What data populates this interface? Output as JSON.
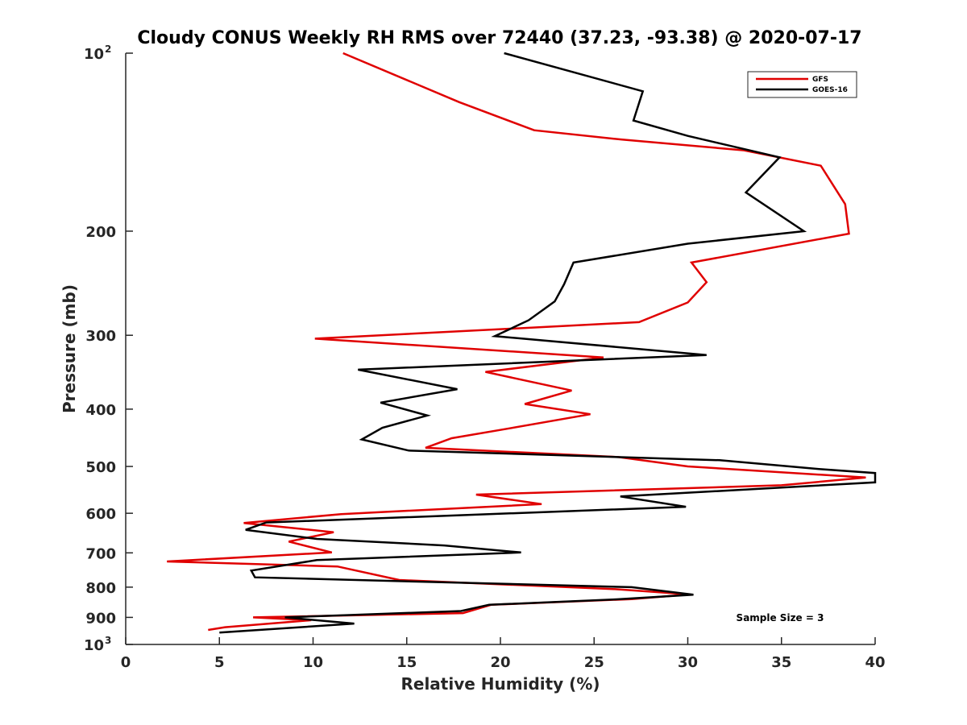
{
  "chart_data": {
    "type": "line",
    "title": "Cloudy CONUS Weekly RH RMS over 72440 (37.23, -93.38) @ 2020-07-17",
    "xlabel": "Relative Humidity (%)",
    "ylabel": "Pressure (mb)",
    "xlim": [
      0,
      40
    ],
    "ylim": [
      100,
      1000
    ],
    "y_scale": "log",
    "y_reversed": true,
    "grid": false,
    "x_ticks": [
      0,
      5,
      10,
      15,
      20,
      25,
      30,
      35,
      40
    ],
    "y_ticks": [
      {
        "value": 100,
        "label": "10",
        "sup": "2"
      },
      {
        "value": 200,
        "label": "200",
        "sup": ""
      },
      {
        "value": 300,
        "label": "300",
        "sup": ""
      },
      {
        "value": 400,
        "label": "400",
        "sup": ""
      },
      {
        "value": 500,
        "label": "500",
        "sup": ""
      },
      {
        "value": 600,
        "label": "600",
        "sup": ""
      },
      {
        "value": 700,
        "label": "700",
        "sup": ""
      },
      {
        "value": 800,
        "label": "800",
        "sup": ""
      },
      {
        "value": 900,
        "label": "900",
        "sup": ""
      },
      {
        "value": 1000,
        "label": "10",
        "sup": "3"
      }
    ],
    "legend_position": "top-right",
    "annotation": "Sample Size = 3",
    "series": [
      {
        "name": "GFS",
        "color": "#e00000",
        "points": [
          [
            11.6,
            100
          ],
          [
            17.8,
            121
          ],
          [
            21.8,
            135
          ],
          [
            26.5,
            140
          ],
          [
            33.0,
            146
          ],
          [
            37.1,
            155
          ],
          [
            38.4,
            180
          ],
          [
            38.6,
            202
          ],
          [
            30.2,
            226
          ],
          [
            31.0,
            244
          ],
          [
            30.0,
            264
          ],
          [
            27.4,
            285
          ],
          [
            10.1,
            304
          ],
          [
            25.5,
            327
          ],
          [
            19.2,
            346
          ],
          [
            23.8,
            372
          ],
          [
            21.3,
            392
          ],
          [
            24.8,
            408
          ],
          [
            20.5,
            431
          ],
          [
            17.4,
            448
          ],
          [
            16.0,
            465
          ],
          [
            26.3,
            482
          ],
          [
            30.0,
            500
          ],
          [
            39.5,
            522
          ],
          [
            35.0,
            538
          ],
          [
            18.7,
            558
          ],
          [
            22.2,
            579
          ],
          [
            11.5,
            602
          ],
          [
            6.3,
            623
          ],
          [
            11.1,
            646
          ],
          [
            8.7,
            670
          ],
          [
            11.0,
            699
          ],
          [
            2.2,
            724
          ],
          [
            11.3,
            738
          ],
          [
            14.6,
            778
          ],
          [
            26.0,
            806
          ],
          [
            30.1,
            823
          ],
          [
            27.0,
            838
          ],
          [
            19.5,
            857
          ],
          [
            18.0,
            885
          ],
          [
            6.8,
            900
          ],
          [
            9.9,
            910
          ],
          [
            5.3,
            935
          ],
          [
            4.4,
            945
          ]
        ]
      },
      {
        "name": "GOES-16",
        "color": "#000000",
        "points": [
          [
            20.2,
            100
          ],
          [
            27.6,
            116
          ],
          [
            27.1,
            130
          ],
          [
            30.0,
            138
          ],
          [
            34.9,
            150
          ],
          [
            33.1,
            172
          ],
          [
            36.2,
            200
          ],
          [
            30.0,
            210
          ],
          [
            23.9,
            226
          ],
          [
            23.4,
            246
          ],
          [
            22.9,
            263
          ],
          [
            21.5,
            283
          ],
          [
            19.7,
            301
          ],
          [
            31.0,
            324
          ],
          [
            12.4,
            343
          ],
          [
            17.7,
            370
          ],
          [
            13.6,
            390
          ],
          [
            16.1,
            410
          ],
          [
            13.7,
            430
          ],
          [
            12.6,
            450
          ],
          [
            15.1,
            470
          ],
          [
            31.7,
            488
          ],
          [
            37.0,
            505
          ],
          [
            40.0,
            513
          ],
          [
            40.0,
            532
          ],
          [
            26.4,
            562
          ],
          [
            29.9,
            585
          ],
          [
            7.5,
            622
          ],
          [
            6.4,
            640
          ],
          [
            10.2,
            663
          ],
          [
            17.0,
            680
          ],
          [
            21.1,
            699
          ],
          [
            10.2,
            720
          ],
          [
            6.7,
            750
          ],
          [
            6.9,
            770
          ],
          [
            27.0,
            800
          ],
          [
            30.3,
            824
          ],
          [
            26.2,
            839
          ],
          [
            19.4,
            857
          ],
          [
            17.9,
            878
          ],
          [
            8.5,
            900
          ],
          [
            12.2,
            922
          ],
          [
            5.0,
            955
          ]
        ]
      }
    ]
  }
}
